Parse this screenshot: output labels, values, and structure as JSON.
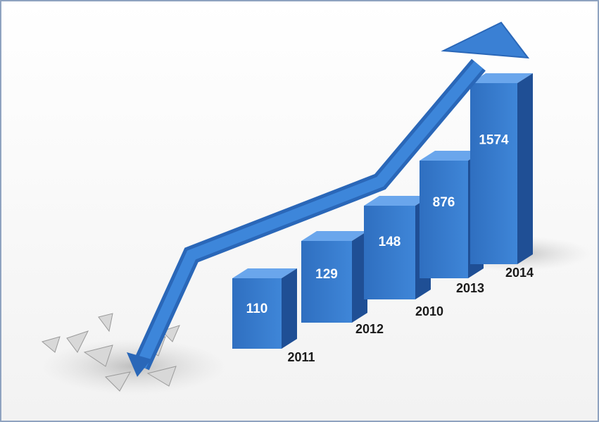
{
  "bars": [
    {
      "value": "110",
      "year": "2011"
    },
    {
      "value": "129",
      "year": "2012"
    },
    {
      "value": "148",
      "year": "2010"
    },
    {
      "value": "876",
      "year": "2013"
    },
    {
      "value": "1574",
      "year": "2014"
    }
  ]
}
